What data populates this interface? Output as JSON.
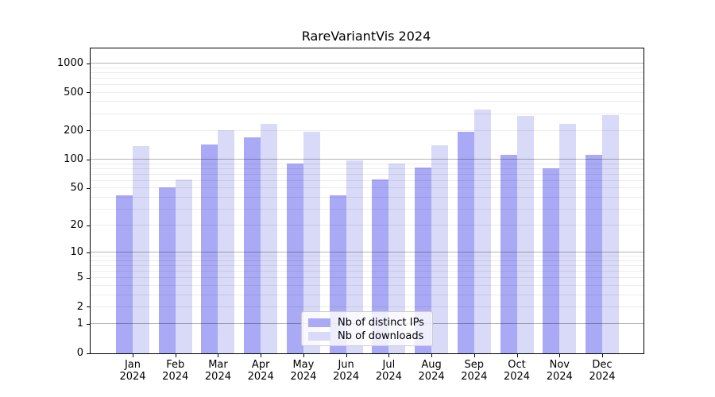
{
  "chart_data": {
    "type": "bar",
    "title": "RareVariantVis 2024",
    "scale": "log1p",
    "grid": "on",
    "xlabel": "",
    "ylabel": "",
    "ylim": [
      0,
      1430
    ],
    "yticks": [
      0,
      1,
      2,
      5,
      10,
      20,
      50,
      100,
      200,
      500,
      1000
    ],
    "categories": [
      "Jan",
      "Feb",
      "Mar",
      "Apr",
      "May",
      "Jun",
      "Jul",
      "Aug",
      "Sep",
      "Oct",
      "Nov",
      "Dec"
    ],
    "year_label": "2024",
    "series": [
      {
        "name": "Nb of distinct IPs",
        "color": "#a9a9f5",
        "values": [
          42,
          51,
          145,
          170,
          92,
          42,
          62,
          83,
          195,
          113,
          82,
          113
        ]
      },
      {
        "name": "Nb of downloads",
        "color": "#d9d9f8",
        "values": [
          140,
          62,
          204,
          235,
          194,
          99,
          91,
          141,
          333,
          285,
          236,
          290
        ]
      }
    ],
    "legend_position": "bottom-center"
  },
  "colors": {
    "major_grid": "#b5b5b5",
    "minor_grid": "#ececec",
    "spine": "#000000",
    "text": "#000000",
    "legend_border": "#cccccc",
    "background": "#ffffff"
  }
}
